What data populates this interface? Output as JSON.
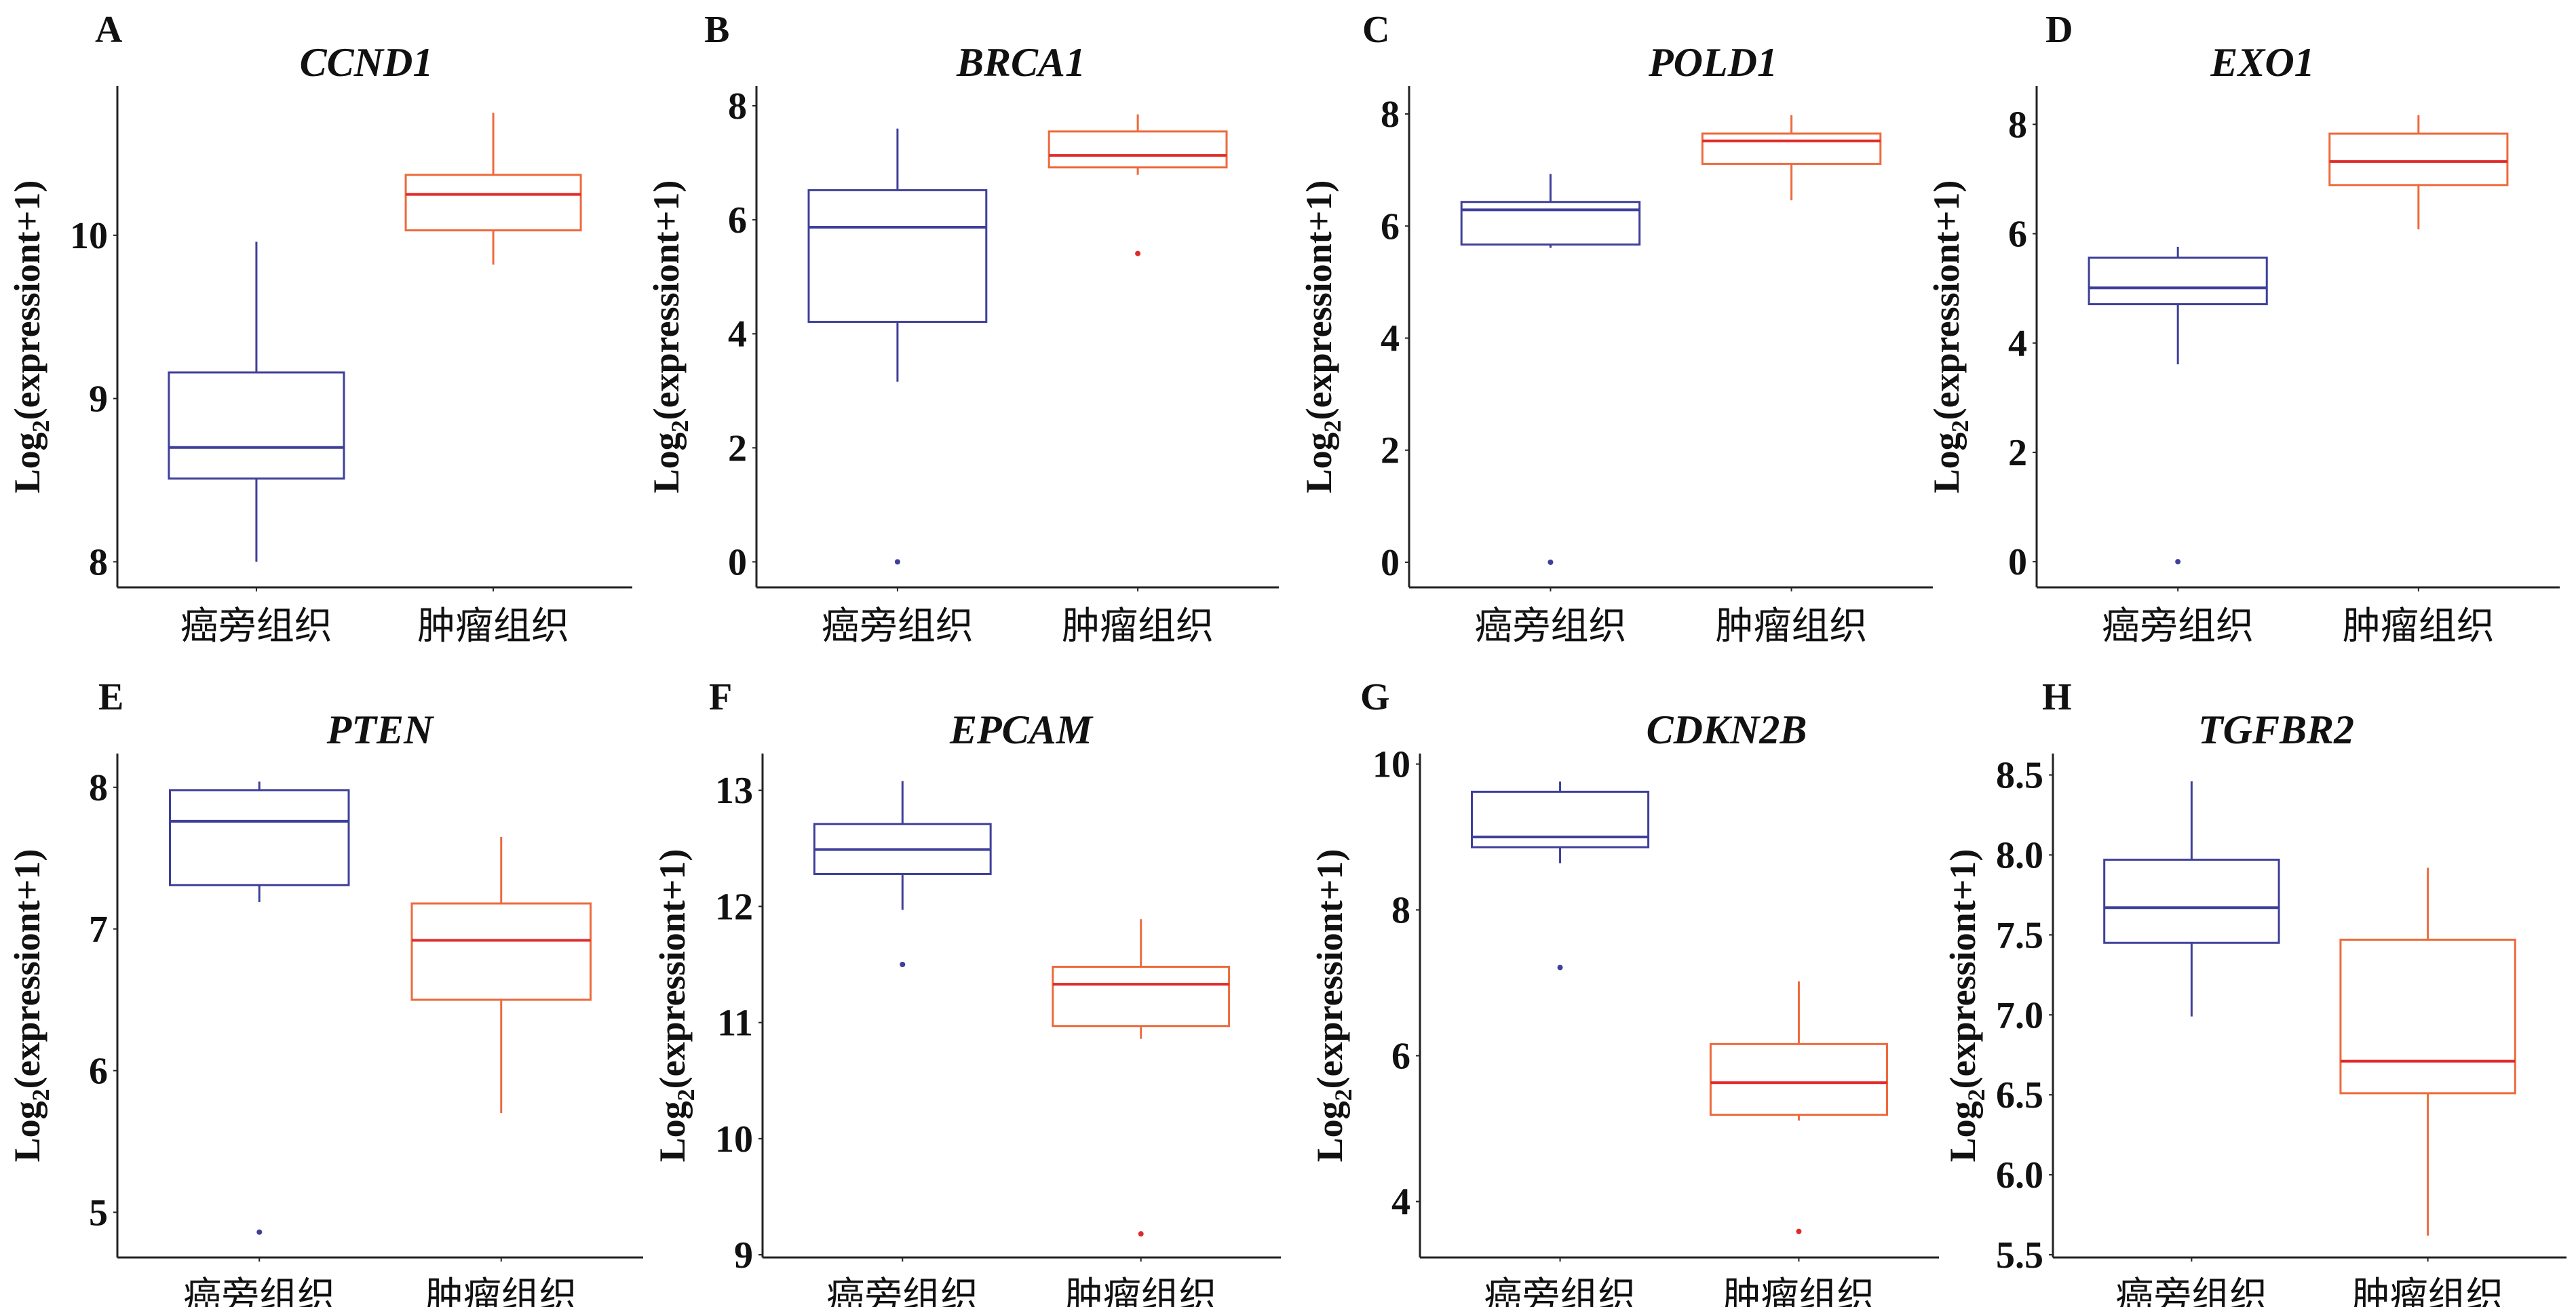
{
  "figure": {
    "categories": [
      "癌旁组织",
      "肿瘤组织"
    ],
    "ylabel_main": "Log",
    "ylabel_sub": "2",
    "ylabel_rest": "(expressiont+1)",
    "colors": {
      "adjacent": "#3F3F9A",
      "tumor_edge": "#EE6A3C",
      "tumor_median": "#E02A2A"
    }
  },
  "chart_data": [
    {
      "type": "box",
      "panel": "A",
      "title": "CCND1",
      "xlabel": "",
      "ylabel": "Log2(expressiont+1)",
      "categories": [
        "癌旁组织",
        "肿瘤组织"
      ],
      "yticks": [
        8,
        9,
        10
      ],
      "ytick_labels": [
        "8",
        "9",
        "10"
      ],
      "ylim": [
        7.86,
        10.88
      ],
      "series": [
        {
          "name": "癌旁组织",
          "whisker_low": 8.0,
          "q1": 8.51,
          "median": 8.7,
          "q3": 9.16,
          "whisker_high": 9.96,
          "outliers": []
        },
        {
          "name": "肿瘤组织",
          "whisker_low": 9.82,
          "q1": 10.03,
          "median": 10.25,
          "q3": 10.37,
          "whisker_high": 10.75,
          "outliers": []
        }
      ]
    },
    {
      "type": "box",
      "panel": "B",
      "title": "BRCA1",
      "xlabel": "",
      "ylabel": "Log2(expressiont+1)",
      "categories": [
        "癌旁组织",
        "肿瘤组织"
      ],
      "yticks": [
        0,
        2,
        4,
        6,
        8
      ],
      "ytick_labels": [
        "0",
        "2",
        "4",
        "6",
        "8"
      ],
      "ylim": [
        -0.4,
        8.25
      ],
      "series": [
        {
          "name": "癌旁组织",
          "whisker_low": 3.16,
          "q1": 4.21,
          "median": 5.87,
          "q3": 6.52,
          "whisker_high": 7.6,
          "outliers": [
            0.0
          ]
        },
        {
          "name": "肿瘤组织",
          "whisker_low": 6.79,
          "q1": 6.92,
          "median": 7.13,
          "q3": 7.55,
          "whisker_high": 7.85,
          "outliers": [
            5.41
          ]
        }
      ]
    },
    {
      "type": "box",
      "panel": "C",
      "title": "POLD1",
      "xlabel": "",
      "ylabel": "Log2(expressiont+1)",
      "categories": [
        "癌旁组织",
        "肿瘤组织"
      ],
      "yticks": [
        0,
        2,
        4,
        6,
        8
      ],
      "ytick_labels": [
        "0",
        "2",
        "4",
        "6",
        "8"
      ],
      "ylim": [
        -0.4,
        8.4
      ],
      "series": [
        {
          "name": "癌旁组织",
          "whisker_low": 5.61,
          "q1": 5.67,
          "median": 6.29,
          "q3": 6.43,
          "whisker_high": 6.93,
          "outliers": [
            0.0
          ]
        },
        {
          "name": "肿瘤组织",
          "whisker_low": 6.46,
          "q1": 7.11,
          "median": 7.52,
          "q3": 7.65,
          "whisker_high": 7.98,
          "outliers": []
        }
      ]
    },
    {
      "type": "box",
      "panel": "D",
      "title": "EXO1",
      "xlabel": "",
      "ylabel": "Log2(expressiont+1)",
      "categories": [
        "癌旁组织",
        "肿瘤组织"
      ],
      "yticks": [
        0,
        2,
        4,
        6,
        8
      ],
      "ytick_labels": [
        "0",
        "2",
        "4",
        "6",
        "8"
      ],
      "ylim": [
        -0.42,
        8.6
      ],
      "series": [
        {
          "name": "癌旁组织",
          "whisker_low": 3.61,
          "q1": 4.71,
          "median": 5.01,
          "q3": 5.56,
          "whisker_high": 5.76,
          "outliers": [
            0.0
          ]
        },
        {
          "name": "肿瘤组织",
          "whisker_low": 6.08,
          "q1": 6.89,
          "median": 7.32,
          "q3": 7.83,
          "whisker_high": 8.17,
          "outliers": []
        }
      ]
    },
    {
      "type": "box",
      "panel": "E",
      "title": "PTEN",
      "xlabel": "",
      "ylabel": "Log2(expressiont+1)",
      "categories": [
        "癌旁组织",
        "肿瘤组织"
      ],
      "yticks": [
        5,
        6,
        7,
        8
      ],
      "ytick_labels": [
        "5",
        "6",
        "7",
        "8"
      ],
      "ylim": [
        4.7,
        8.2
      ],
      "series": [
        {
          "name": "癌旁组织",
          "whisker_low": 7.19,
          "q1": 7.31,
          "median": 7.76,
          "q3": 7.98,
          "whisker_high": 8.04,
          "outliers": [
            4.86
          ]
        },
        {
          "name": "肿瘤组织",
          "whisker_low": 5.7,
          "q1": 6.5,
          "median": 6.92,
          "q3": 7.18,
          "whisker_high": 7.65,
          "outliers": []
        }
      ]
    },
    {
      "type": "box",
      "panel": "F",
      "title": "EPCAM",
      "xlabel": "",
      "ylabel": "Log2(expressiont+1)",
      "categories": [
        "癌旁组织",
        "肿瘤组织"
      ],
      "yticks": [
        9,
        10,
        11,
        12,
        13
      ],
      "ytick_labels": [
        "9",
        "10",
        "11",
        "12",
        "13"
      ],
      "ylim": [
        9.0,
        13.27
      ],
      "series": [
        {
          "name": "癌旁组织",
          "whisker_low": 11.97,
          "q1": 12.28,
          "median": 12.49,
          "q3": 12.71,
          "whisker_high": 13.08,
          "outliers": [
            11.5
          ]
        },
        {
          "name": "肿瘤组织",
          "whisker_low": 10.86,
          "q1": 10.97,
          "median": 11.33,
          "q3": 11.48,
          "whisker_high": 11.89,
          "outliers": [
            9.18
          ]
        }
      ]
    },
    {
      "type": "box",
      "panel": "G",
      "title": "CDKN2B",
      "xlabel": "",
      "ylabel": "Log2(expressiont+1)",
      "categories": [
        "癌旁组织",
        "肿瘤组织"
      ],
      "yticks": [
        4,
        6,
        8,
        10
      ],
      "ytick_labels": [
        "4",
        "6",
        "8",
        "10"
      ],
      "ylim": [
        3.27,
        10.07
      ],
      "series": [
        {
          "name": "癌旁组织",
          "whisker_low": 8.64,
          "q1": 8.86,
          "median": 9.0,
          "q3": 9.62,
          "whisker_high": 9.76,
          "outliers": [
            7.21
          ]
        },
        {
          "name": "肿瘤组织",
          "whisker_low": 5.11,
          "q1": 5.19,
          "median": 5.63,
          "q3": 6.16,
          "whisker_high": 7.02,
          "outliers": [
            3.59
          ]
        }
      ]
    },
    {
      "type": "box",
      "panel": "H",
      "title": "TGFBR2",
      "xlabel": "",
      "ylabel": "Log2(expressiont+1)",
      "categories": [
        "癌旁组织",
        "肿瘤组织"
      ],
      "yticks": [
        5.5,
        6.0,
        6.5,
        7.0,
        7.5,
        8.0,
        8.5
      ],
      "ytick_labels": [
        "5.5",
        "6.0",
        "6.5",
        "7.0",
        "7.5",
        "8.0",
        "8.5"
      ],
      "ylim": [
        5.5,
        8.6
      ],
      "series": [
        {
          "name": "癌旁组织",
          "whisker_low": 6.99,
          "q1": 7.45,
          "median": 7.67,
          "q3": 7.97,
          "whisker_high": 8.46,
          "outliers": []
        },
        {
          "name": "肿瘤组织",
          "whisker_low": 5.62,
          "q1": 6.51,
          "median": 6.71,
          "q3": 7.47,
          "whisker_high": 7.92,
          "outliers": []
        }
      ]
    }
  ]
}
